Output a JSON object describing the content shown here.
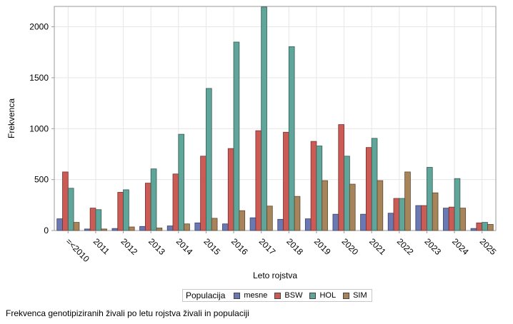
{
  "chart_data": {
    "type": "bar",
    "xlabel": "Leto rojstva",
    "ylabel": "Frekvenca",
    "ylim": [
      0,
      2200
    ],
    "yticks": [
      0,
      500,
      1000,
      1500,
      2000
    ],
    "grid": true,
    "legend_title": "Populacija",
    "legend_position": "bottom",
    "categories": [
      "=<2010",
      "2011",
      "2012",
      "2013",
      "2014",
      "2015",
      "2016",
      "2017",
      "2018",
      "2019",
      "2020",
      "2021",
      "2022",
      "2023",
      "2024",
      "2025"
    ],
    "series": [
      {
        "name": "mesne",
        "color": "#6a78b3",
        "values": [
          115,
          15,
          20,
          40,
          45,
          75,
          65,
          125,
          110,
          115,
          160,
          160,
          170,
          245,
          220,
          20
        ]
      },
      {
        "name": "BSW",
        "color": "#cc5a55",
        "values": [
          575,
          220,
          375,
          465,
          555,
          730,
          805,
          980,
          965,
          875,
          1040,
          815,
          315,
          245,
          230,
          75
        ]
      },
      {
        "name": "HOL",
        "color": "#5fa59a",
        "values": [
          415,
          205,
          400,
          605,
          945,
          1395,
          1850,
          2195,
          1805,
          830,
          730,
          905,
          315,
          620,
          510,
          80
        ]
      },
      {
        "name": "SIM",
        "color": "#a8845a",
        "values": [
          80,
          15,
          35,
          25,
          65,
          120,
          195,
          240,
          335,
          490,
          455,
          490,
          575,
          370,
          220,
          60
        ]
      }
    ]
  },
  "caption": "Frekvenca genotipiziranih živali po letu rojstva živali in populaciji"
}
